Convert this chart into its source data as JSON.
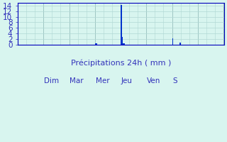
{
  "values": [
    0,
    0,
    0,
    0,
    0,
    0,
    0,
    0,
    0,
    0,
    0,
    0,
    0,
    0,
    0,
    0,
    0,
    0,
    0,
    0,
    0,
    0,
    0,
    0,
    0,
    0,
    0,
    0,
    0,
    0,
    0,
    0,
    0,
    0,
    0,
    0,
    0,
    0,
    0,
    0,
    0,
    0,
    0,
    0,
    0,
    0,
    0,
    0,
    0,
    0,
    0,
    0,
    0,
    0,
    0,
    0,
    0,
    0,
    0,
    0,
    0,
    0,
    0,
    0,
    0,
    0,
    0,
    0,
    0,
    0,
    0,
    0,
    0.5,
    0.5,
    0,
    0,
    0,
    0,
    0,
    0,
    0,
    0,
    0,
    0,
    0,
    0,
    0,
    0,
    0,
    0,
    0,
    0,
    0,
    0,
    0,
    0,
    14.2,
    2.7,
    0.5,
    0.5,
    0,
    0,
    0,
    0,
    0,
    0,
    0,
    0,
    0,
    0,
    0,
    0,
    0,
    0,
    0,
    0,
    0,
    0,
    0,
    0,
    0,
    0,
    0,
    0,
    0,
    0,
    0,
    0,
    0,
    0,
    0,
    0,
    0,
    0,
    0,
    0,
    0,
    0,
    0,
    0,
    0,
    0,
    0,
    0,
    2.1,
    0,
    0,
    0,
    0,
    0,
    0,
    0.7,
    0,
    0,
    0,
    0,
    0,
    0,
    0,
    0,
    0,
    0,
    0,
    0,
    0,
    0,
    0,
    0,
    0,
    0,
    0,
    0,
    0,
    0,
    0,
    0,
    0,
    0,
    0,
    0,
    0,
    0,
    0,
    0,
    0,
    0,
    0,
    0,
    0,
    0,
    0,
    0
  ],
  "n_days": 8,
  "hours_per_day": 24,
  "day_labels": [
    "",
    "Dim",
    "Mar",
    "Mer",
    "Jeu",
    "Ven",
    "S",
    ""
  ],
  "bar_color": "#0033cc",
  "bar_edge_color": "#0033cc",
  "background_color": "#d8f5ef",
  "grid_color": "#b0d8d4",
  "major_grid_color": "#8ab0b0",
  "axis_color": "#0000bb",
  "tick_color": "#3333bb",
  "xlabel": "Précipitations 24h ( mm )",
  "xlabel_color": "#3333bb",
  "ylim": [
    0,
    15
  ],
  "yticks": [
    0,
    2,
    4,
    6,
    8,
    10,
    12,
    14
  ],
  "xlabel_fontsize": 8,
  "tick_fontsize": 7.5
}
